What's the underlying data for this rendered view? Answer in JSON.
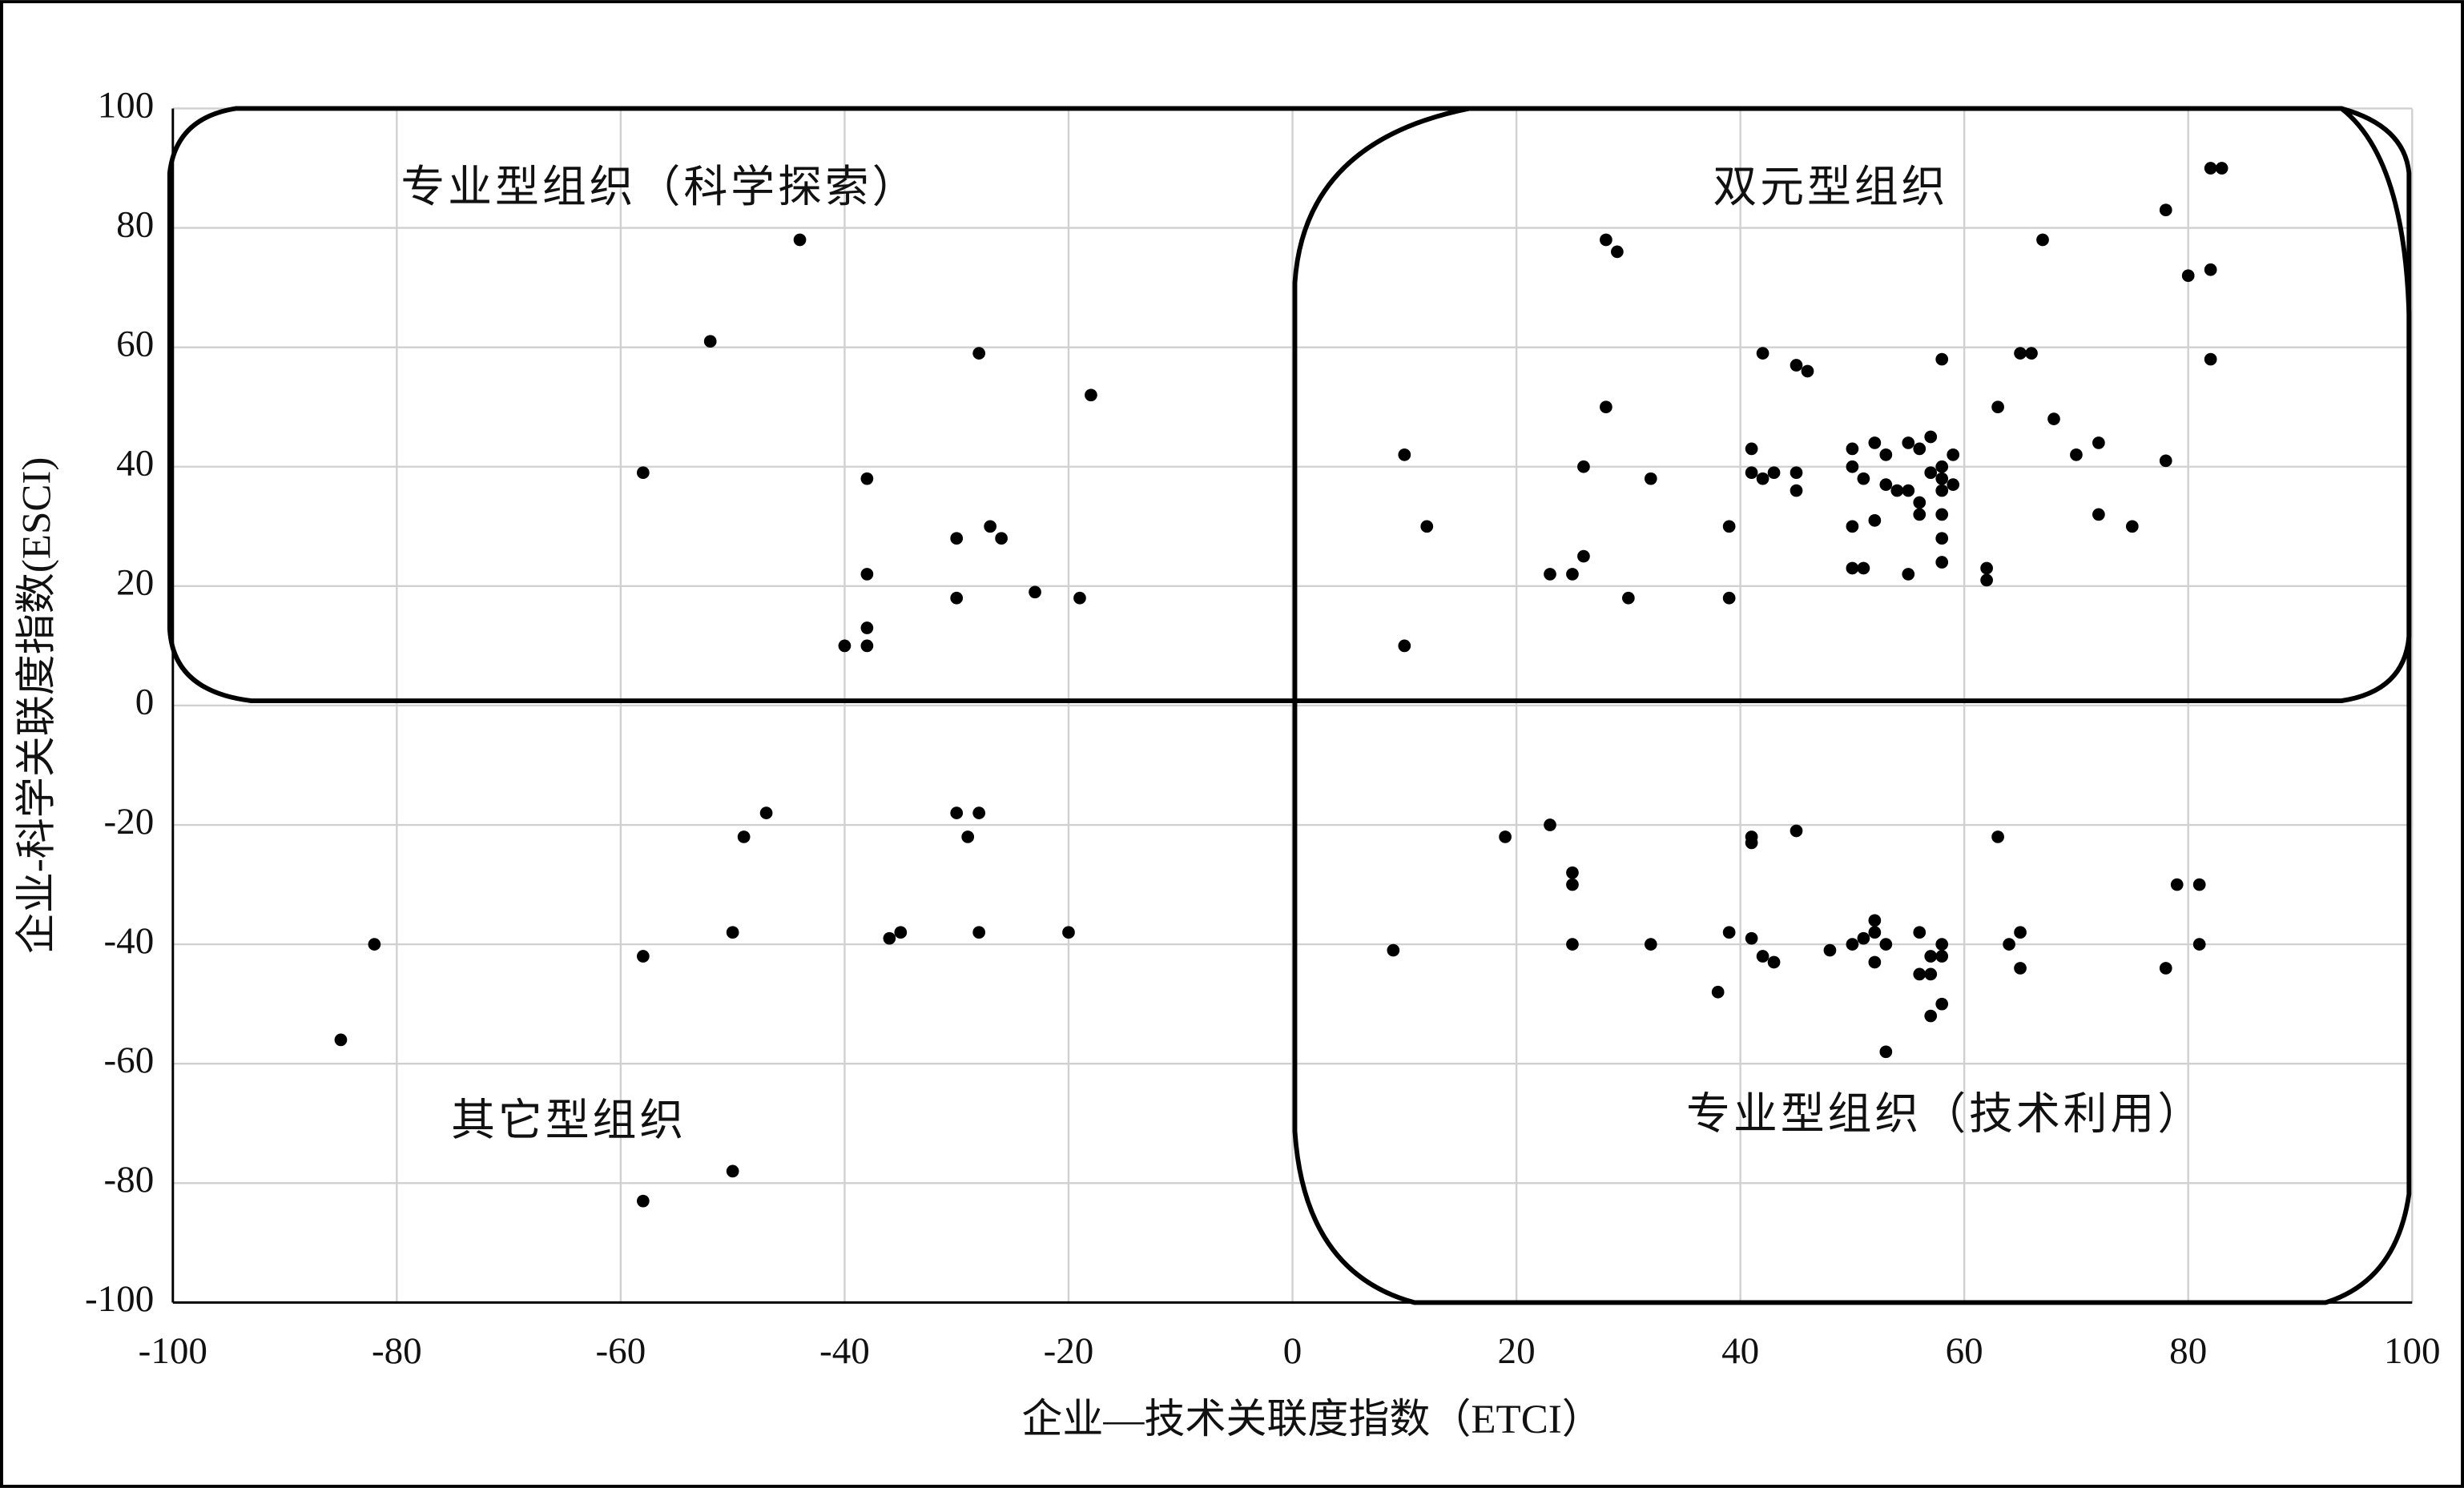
{
  "chart_data": {
    "type": "scatter",
    "x_label": "企业—技术关联度指数（ETCI）",
    "y_label": "企业-科学关联度指数(ESCI)",
    "annotations": [
      "专业型组织（科学探索）",
      "双元型组织",
      "其它型组织",
      "专业型组织（技术利用）"
    ],
    "xlim": [
      -100,
      100
    ],
    "ylim": [
      -100,
      100
    ],
    "xticks": [
      -100,
      -80,
      -60,
      -40,
      -20,
      0,
      20,
      40,
      60,
      80,
      100
    ],
    "yticks": [
      -100,
      -80,
      -60,
      -40,
      -20,
      0,
      20,
      40,
      60,
      80,
      100
    ],
    "grid": true,
    "color": "#000000",
    "x": [
      -44,
      -52,
      -28,
      -18,
      -58,
      -38,
      -27,
      -30,
      -26,
      -38,
      -23,
      -30,
      -19,
      -38,
      -40,
      -38,
      28,
      29,
      83,
      82,
      78,
      82,
      80,
      67,
      42,
      45,
      46,
      58,
      65,
      66,
      82,
      28,
      63,
      68,
      10,
      26,
      32,
      12,
      39,
      41,
      41,
      42,
      43,
      45,
      45,
      50,
      50,
      51,
      52,
      53,
      53,
      54,
      55,
      55,
      56,
      56,
      56,
      57,
      57,
      58,
      58,
      58,
      59,
      59,
      58,
      58,
      58,
      50,
      52,
      50,
      51,
      55,
      62,
      62,
      70,
      72,
      72,
      75,
      78,
      23,
      25,
      26,
      30,
      39,
      10,
      -47,
      -49,
      -30,
      -28,
      -29,
      -82,
      -58,
      -50,
      -36,
      -35,
      -28,
      -20,
      -85,
      -50,
      -58,
      23,
      19,
      25,
      25,
      25,
      9,
      32,
      38,
      39,
      41,
      41,
      45,
      41,
      42,
      43,
      48,
      50,
      51,
      52,
      52,
      52,
      53,
      53,
      56,
      56,
      57,
      57,
      57,
      58,
      58,
      58,
      63,
      64,
      65,
      65,
      78,
      79,
      81,
      81
    ],
    "y": [
      78,
      61,
      59,
      52,
      39,
      38,
      30,
      28,
      28,
      22,
      19,
      18,
      18,
      13,
      10,
      10,
      78,
      76,
      90,
      90,
      83,
      73,
      72,
      78,
      59,
      57,
      56,
      58,
      59,
      59,
      58,
      50,
      50,
      48,
      42,
      40,
      38,
      30,
      30,
      43,
      39,
      38,
      39,
      39,
      36,
      43,
      40,
      38,
      44,
      42,
      37,
      36,
      36,
      44,
      43,
      34,
      32,
      45,
      39,
      40,
      38,
      36,
      42,
      37,
      32,
      28,
      24,
      30,
      31,
      23,
      23,
      22,
      23,
      21,
      42,
      44,
      32,
      30,
      41,
      22,
      22,
      25,
      18,
      18,
      10,
      -18,
      -22,
      -18,
      -18,
      -22,
      -40,
      -42,
      -38,
      -39,
      -38,
      -38,
      -38,
      -56,
      -78,
      -83,
      -20,
      -22,
      -28,
      -30,
      -40,
      -41,
      -40,
      -48,
      -38,
      -22,
      -23,
      -21,
      -39,
      -42,
      -43,
      -41,
      -40,
      -39,
      -36,
      -38,
      -43,
      -40,
      -58,
      -38,
      -45,
      -42,
      -45,
      -52,
      -42,
      -40,
      -50,
      -22,
      -40,
      -38,
      -44,
      -44,
      -30,
      -30,
      -40
    ]
  }
}
